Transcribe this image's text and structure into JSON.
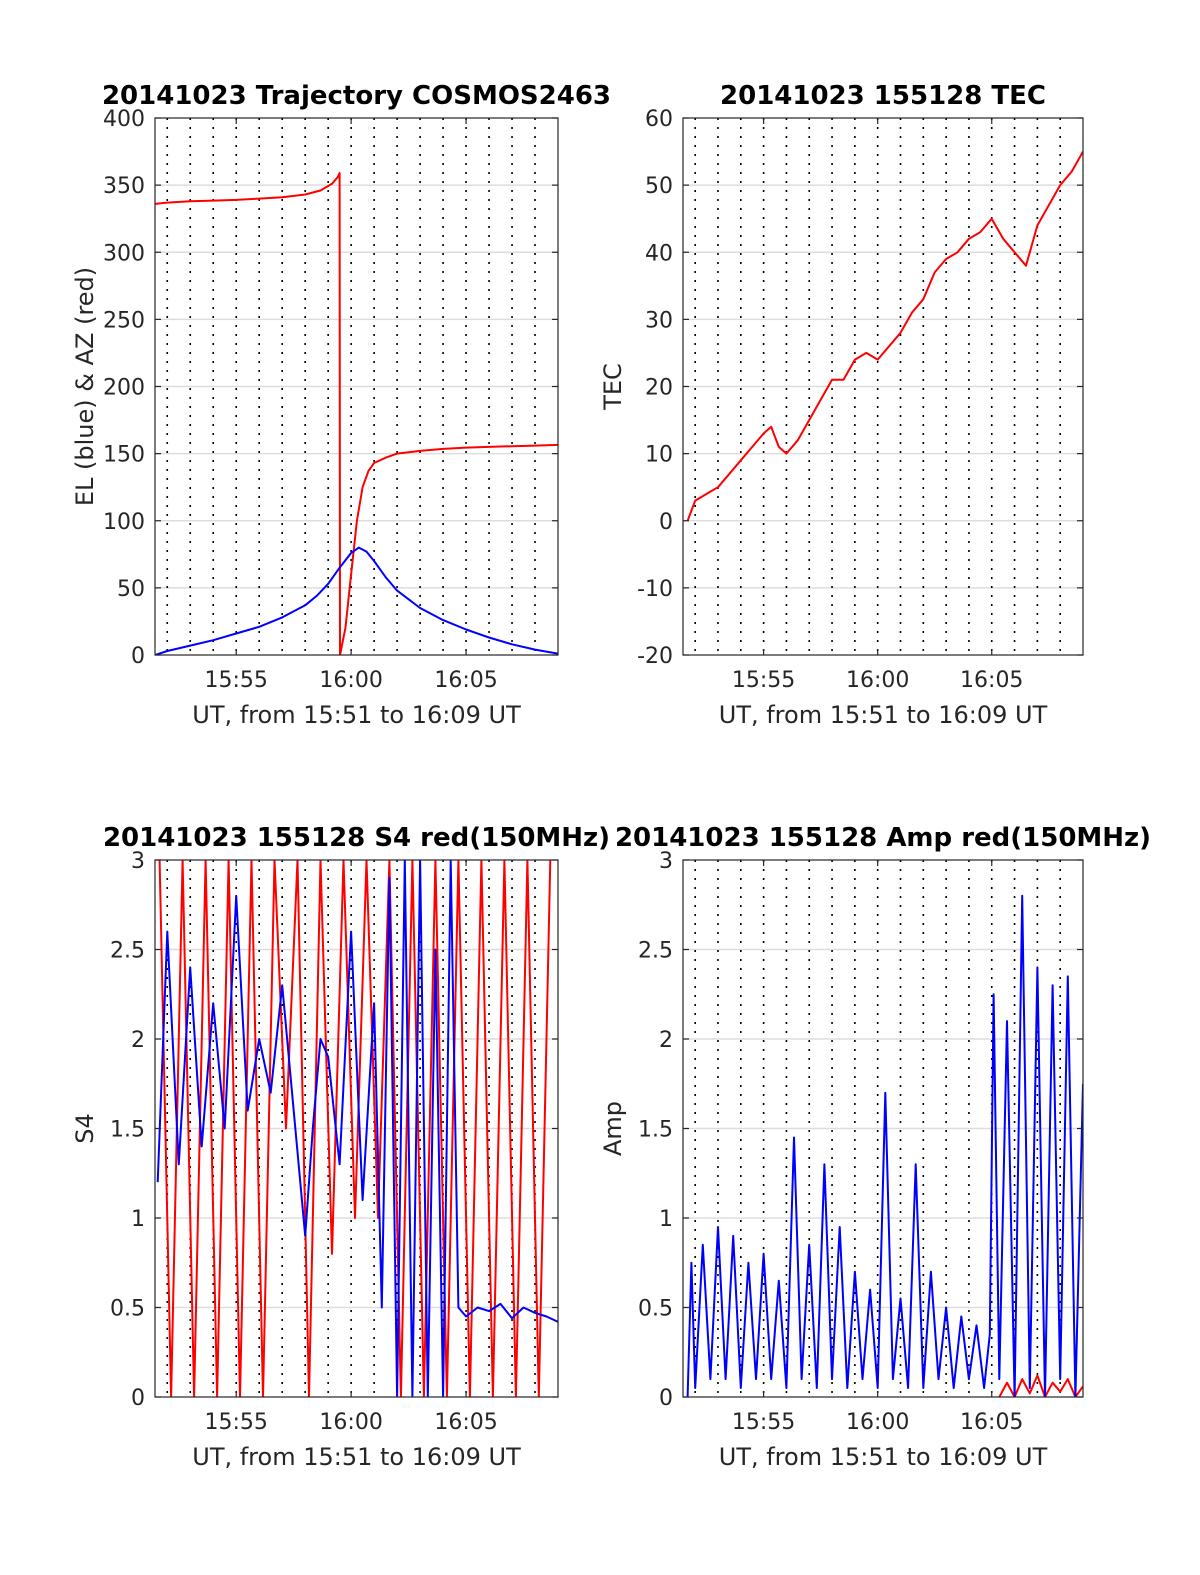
{
  "chart_data": [
    {
      "type": "line",
      "title": "20141023 Trajectory COSMOS2463",
      "xlabel": "UT, from 15:51 to 16:09 UT",
      "ylabel": "EL (blue) & AZ (red)",
      "xlim": [
        "15:51:28",
        "16:09:00"
      ],
      "ylim": [
        0,
        400
      ],
      "xticks": [
        "15:55",
        "16:00",
        "16:05"
      ],
      "yticks": [
        0,
        50,
        100,
        150,
        200,
        250,
        300,
        350,
        400
      ],
      "grid": true,
      "series": [
        {
          "color": "#ff0000",
          "x": [
            "15:51:28",
            "15:52:00",
            "15:53:00",
            "15:54:00",
            "15:55:00",
            "15:56:00",
            "15:57:00",
            "15:58:00",
            "15:58:40",
            "15:59:10",
            "15:59:25",
            "15:59:30",
            "15:59:31",
            "15:59:45",
            "16:00:00",
            "16:00:15",
            "16:00:30",
            "16:00:45",
            "16:01:00",
            "16:01:30",
            "16:02:00",
            "16:03:00",
            "16:04:00",
            "16:05:00",
            "16:06:00",
            "16:07:00",
            "16:08:00",
            "16:09:00"
          ],
          "values": [
            336,
            337,
            338,
            338.5,
            339,
            340,
            341,
            343,
            346,
            351,
            356,
            359,
            0,
            20,
            60,
            100,
            125,
            137,
            143,
            147,
            150,
            152,
            153.5,
            154.5,
            155,
            155.5,
            156,
            156.5
          ]
        },
        {
          "color": "#0000ff",
          "x": [
            "15:51:28",
            "15:52:00",
            "15:53:00",
            "15:54:00",
            "15:55:00",
            "15:56:00",
            "15:57:00",
            "15:58:00",
            "15:58:30",
            "15:59:00",
            "15:59:30",
            "16:00:00",
            "16:00:20",
            "16:00:40",
            "16:01:00",
            "16:01:30",
            "16:02:00",
            "16:03:00",
            "16:04:00",
            "16:05:00",
            "16:06:00",
            "16:07:00",
            "16:08:00",
            "16:09:00"
          ],
          "values": [
            0,
            3,
            7,
            11,
            16,
            21,
            28,
            37,
            44,
            53,
            65,
            76,
            80,
            77,
            70,
            58,
            48,
            35,
            26,
            19,
            13,
            8,
            4,
            1
          ]
        }
      ]
    },
    {
      "type": "line",
      "title": "20141023 155128 TEC",
      "xlabel": "UT, from 15:51 to 16:09 UT",
      "ylabel": "TEC",
      "xlim": [
        "15:51:28",
        "16:09:00"
      ],
      "ylim": [
        -20,
        60
      ],
      "xticks": [
        "15:55",
        "16:00",
        "16:05"
      ],
      "yticks": [
        -20,
        -10,
        0,
        10,
        20,
        30,
        40,
        50,
        60
      ],
      "grid": true,
      "series": [
        {
          "color": "#ff0000",
          "x": [
            "15:51:40",
            "15:52:00",
            "15:52:30",
            "15:53:00",
            "15:53:30",
            "15:54:00",
            "15:54:30",
            "15:55:00",
            "15:55:20",
            "15:55:40",
            "15:56:00",
            "15:56:30",
            "15:57:00",
            "15:57:30",
            "15:58:00",
            "15:58:30",
            "15:59:00",
            "15:59:30",
            "16:00:00",
            "16:00:30",
            "16:01:00",
            "16:01:30",
            "16:02:00",
            "16:02:30",
            "16:03:00",
            "16:03:30",
            "16:04:00",
            "16:04:30",
            "16:05:00",
            "16:05:30",
            "16:06:00",
            "16:06:30",
            "16:07:00",
            "16:07:30",
            "16:08:00",
            "16:08:30",
            "16:09:00"
          ],
          "values": [
            0,
            3,
            4,
            5,
            7,
            9,
            11,
            13,
            14,
            11,
            10,
            12,
            15,
            18,
            21,
            21,
            24,
            25,
            24,
            26,
            28,
            31,
            33,
            37,
            39,
            40,
            42,
            43,
            45,
            42,
            40,
            38,
            44,
            47,
            50,
            52,
            55
          ]
        }
      ]
    },
    {
      "type": "line",
      "title": "20141023 155128 S4 red(150MHz)",
      "xlabel": "UT, from 15:51 to 16:09 UT",
      "ylabel": "S4",
      "xlim": [
        "15:51:28",
        "16:09:00"
      ],
      "ylim": [
        0,
        3
      ],
      "xticks": [
        "15:55",
        "16:00",
        "16:05"
      ],
      "yticks": [
        0,
        0.5,
        1,
        1.5,
        2,
        2.5,
        3
      ],
      "grid": true,
      "series": [
        {
          "color": "#ff0000",
          "x": [
            "15:51:40",
            "15:52:10",
            "15:52:40",
            "15:53:10",
            "15:53:40",
            "15:54:10",
            "15:54:40",
            "15:55:10",
            "15:55:40",
            "15:56:10",
            "15:56:40",
            "15:57:10",
            "15:57:40",
            "15:58:10",
            "15:58:40",
            "15:59:10",
            "15:59:40",
            "16:00:10",
            "16:00:40",
            "16:01:10",
            "16:01:40",
            "16:02:10",
            "16:02:40",
            "16:03:10",
            "16:03:40",
            "16:04:10",
            "16:04:40",
            "16:05:10",
            "16:05:40",
            "16:06:10",
            "16:06:40",
            "16:07:10",
            "16:07:40",
            "16:08:10",
            "16:08:40"
          ],
          "values": [
            3,
            0,
            3,
            0,
            3,
            0,
            3,
            0,
            3,
            0,
            3,
            1.5,
            3,
            0,
            3,
            0.8,
            3,
            1,
            3,
            1,
            3,
            0,
            3,
            0,
            3,
            0,
            3,
            0,
            3,
            0,
            3,
            0,
            3,
            0,
            3
          ]
        },
        {
          "color": "#0000ff",
          "x": [
            "15:51:35",
            "15:52:00",
            "15:52:30",
            "15:53:00",
            "15:53:30",
            "15:54:00",
            "15:54:30",
            "15:55:00",
            "15:55:30",
            "15:56:00",
            "15:56:30",
            "15:57:00",
            "15:57:30",
            "15:58:00",
            "15:58:20",
            "15:58:40",
            "15:59:00",
            "15:59:30",
            "16:00:00",
            "16:00:30",
            "16:01:00",
            "16:01:20",
            "16:01:40",
            "16:02:00",
            "16:02:20",
            "16:02:40",
            "16:03:00",
            "16:03:20",
            "16:03:40",
            "16:04:00",
            "16:04:20",
            "16:04:40",
            "16:05:00",
            "16:05:30",
            "16:06:00",
            "16:06:30",
            "16:07:00",
            "16:07:30",
            "16:08:00",
            "16:08:30",
            "16:09:00"
          ],
          "values": [
            1.2,
            2.6,
            1.3,
            2.4,
            1.4,
            2.2,
            1.5,
            2.8,
            1.6,
            2.0,
            1.7,
            2.3,
            1.6,
            0.9,
            1.5,
            2.0,
            1.9,
            1.3,
            2.6,
            1.1,
            2.2,
            0.5,
            2.9,
            0,
            3,
            0,
            3,
            0,
            2.5,
            0,
            3,
            0.5,
            0.45,
            0.5,
            0.48,
            0.52,
            0.44,
            0.5,
            0.47,
            0.45,
            0.42
          ]
        }
      ]
    },
    {
      "type": "line",
      "title": "20141023 155128 Amp red(150MHz)",
      "xlabel": "UT, from 15:51 to 16:09 UT",
      "ylabel": "Amp",
      "xlim": [
        "15:51:28",
        "16:09:00"
      ],
      "ylim": [
        0,
        3
      ],
      "xticks": [
        "15:55",
        "16:00",
        "16:05"
      ],
      "yticks": [
        0,
        0.5,
        1,
        1.5,
        2,
        2.5,
        3
      ],
      "grid": true,
      "series": [
        {
          "color": "#ff0000",
          "x": [
            "16:05:20",
            "16:05:40",
            "16:06:00",
            "16:06:20",
            "16:06:40",
            "16:07:00",
            "16:07:20",
            "16:07:40",
            "16:08:00",
            "16:08:20",
            "16:08:40",
            "16:09:00"
          ],
          "values": [
            0,
            0.08,
            0,
            0.1,
            0.02,
            0.12,
            0,
            0.08,
            0.03,
            0.1,
            0,
            0.06
          ]
        },
        {
          "color": "#0000ff",
          "x": [
            "15:51:40",
            "15:51:50",
            "15:52:00",
            "15:52:20",
            "15:52:40",
            "15:53:00",
            "15:53:20",
            "15:53:40",
            "15:54:00",
            "15:54:20",
            "15:54:40",
            "15:55:00",
            "15:55:20",
            "15:55:40",
            "15:56:00",
            "15:56:20",
            "15:56:40",
            "15:57:00",
            "15:57:20",
            "15:57:40",
            "15:58:00",
            "15:58:20",
            "15:58:40",
            "15:59:00",
            "15:59:20",
            "15:59:40",
            "16:00:00",
            "16:00:20",
            "16:00:40",
            "16:01:00",
            "16:01:20",
            "16:01:40",
            "16:02:00",
            "16:02:20",
            "16:02:40",
            "16:03:00",
            "16:03:20",
            "16:03:40",
            "16:04:00",
            "16:04:20",
            "16:04:40",
            "16:04:55",
            "16:05:05",
            "16:05:20",
            "16:05:40",
            "16:06:00",
            "16:06:20",
            "16:06:40",
            "16:07:00",
            "16:07:20",
            "16:07:40",
            "16:08:00",
            "16:08:20",
            "16:08:40",
            "16:09:00"
          ],
          "values": [
            0,
            0.75,
            0.05,
            0.85,
            0.1,
            0.95,
            0.1,
            0.9,
            0.05,
            0.75,
            0.1,
            0.8,
            0.1,
            0.65,
            0.05,
            1.45,
            0.1,
            0.85,
            0.05,
            1.3,
            0.1,
            0.95,
            0.05,
            0.7,
            0.1,
            0.6,
            0.05,
            1.7,
            0.1,
            0.55,
            0.05,
            1.3,
            0.05,
            0.7,
            0.1,
            0.5,
            0.05,
            0.45,
            0.1,
            0.4,
            0.05,
            0.35,
            2.25,
            0.1,
            2.1,
            0,
            2.8,
            0.05,
            2.4,
            0,
            2.3,
            0.1,
            2.35,
            0,
            1.75
          ]
        }
      ]
    }
  ]
}
